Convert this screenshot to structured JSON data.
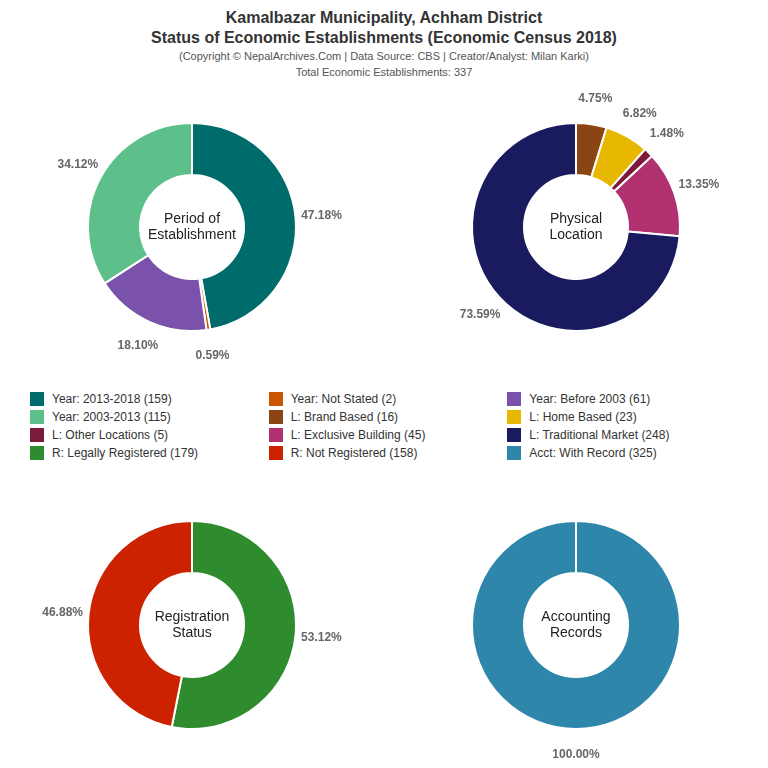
{
  "title": [
    "Kamalbazar Municipality, Achham District",
    "Status of Economic Establishments (Economic Census 2018)"
  ],
  "subtitle": [
    "(Copyright © NepalArchives.Com | Data Source: CBS | Creator/Analyst: Milan Karki)",
    "Total Economic Establishments: 337"
  ],
  "chart_data": [
    {
      "type": "doughnut",
      "title": "Period of\nEstablishment",
      "categories": [
        "Year: 2013-2018 (159)",
        "Year: Not Stated (2)",
        "Year: Before 2003 (61)",
        "Year: 2003-2013 (115)"
      ],
      "values": [
        47.18,
        0.59,
        18.1,
        34.12
      ],
      "value_labels": [
        "47.18%",
        "0.59%",
        "18.10%",
        "34.12%"
      ],
      "colors": [
        "#006B6B",
        "#CC5500",
        "#7B52AB",
        "#5DC08A"
      ],
      "data_labels": true
    },
    {
      "type": "doughnut",
      "title": "Physical\nLocation",
      "categories": [
        "L: Brand Based (16)",
        "L: Home Based (23)",
        "L: Other Locations (5)",
        "L: Exclusive Building (45)",
        "L: Traditional Market (248)"
      ],
      "values": [
        4.75,
        6.82,
        1.48,
        13.35,
        73.59
      ],
      "value_labels": [
        "4.75%",
        "6.82%",
        "1.48%",
        "13.35%",
        "73.59%"
      ],
      "colors": [
        "#8B4513",
        "#E8B800",
        "#7B1A3A",
        "#B03070",
        "#1A1A5E"
      ],
      "data_labels": true
    },
    {
      "type": "doughnut",
      "title": "Registration\nStatus",
      "categories": [
        "R: Legally Registered (179)",
        "R: Not Registered (158)"
      ],
      "values": [
        53.12,
        46.88
      ],
      "value_labels": [
        "53.12%",
        "46.88%"
      ],
      "colors": [
        "#2E8B2E",
        "#CC2200"
      ],
      "data_labels": true
    },
    {
      "type": "doughnut",
      "title": "Accounting\nRecords",
      "categories": [
        "Acct: With Record (325)"
      ],
      "values": [
        100.0
      ],
      "value_labels": [
        "100.00%"
      ],
      "colors": [
        "#2E86AB"
      ],
      "data_labels": true
    }
  ]
}
